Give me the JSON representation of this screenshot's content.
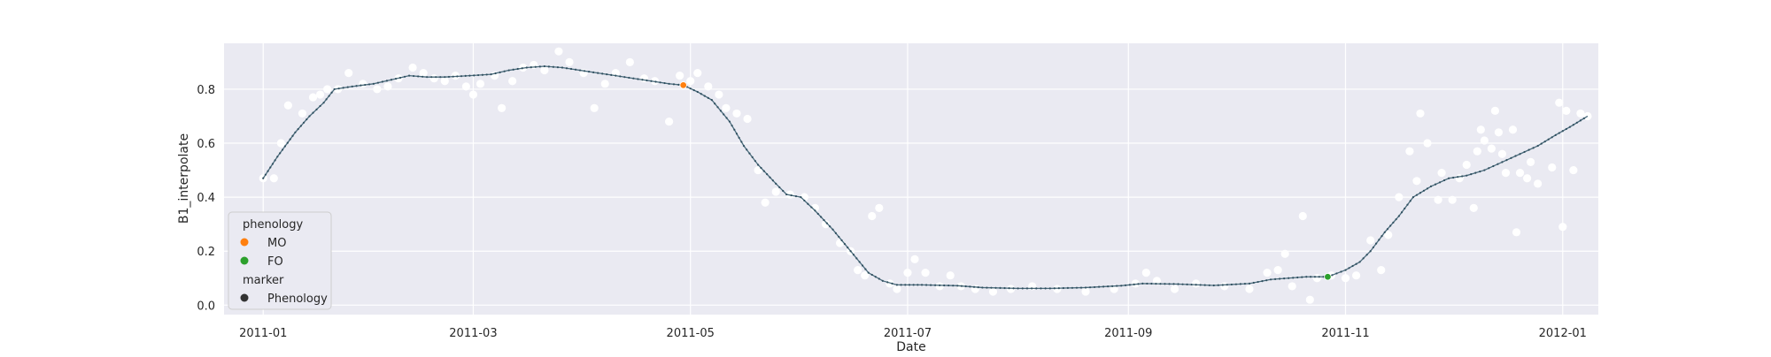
{
  "chart_data": {
    "type": "line",
    "xlabel": "Date",
    "ylabel": "B1_interpolate",
    "xlim": [
      "2010-12-21",
      "2012-01-11"
    ],
    "ylim": [
      -0.035,
      0.97
    ],
    "x_ticks": [
      "2011-01-01",
      "2011-03-01",
      "2011-05-01",
      "2011-07-01",
      "2011-09-01",
      "2011-11-01",
      "2012-01-01"
    ],
    "x_tick_labels": [
      "2011-01",
      "2011-03",
      "2011-05",
      "2011-07",
      "2011-09",
      "2011-11",
      "2012-01"
    ],
    "y_ticks": [
      0.0,
      0.2,
      0.4,
      0.6,
      0.8
    ],
    "y_tick_labels": [
      "0.0",
      "0.2",
      "0.4",
      "0.6",
      "0.8"
    ],
    "grid": true,
    "legend_position": "lower-left",
    "legend": {
      "title_hue": "phenology",
      "title_marker": "marker",
      "entries": [
        {
          "label": "MO",
          "color": "#ff7f0e"
        },
        {
          "label": "FO",
          "color": "#2ca02c"
        }
      ],
      "marker_entries": [
        {
          "label": "Phenology",
          "color": "#333333"
        }
      ]
    },
    "colors": {
      "line": "#4a6b7c",
      "raw_points": "#ffffff",
      "background": "#eaeaf2",
      "grid": "#ffffff"
    },
    "series": [
      {
        "name": "B1_interpolate",
        "kind": "line",
        "points": [
          [
            "2011-01-01",
            0.47
          ],
          [
            "2011-01-05",
            0.55
          ],
          [
            "2011-01-10",
            0.64
          ],
          [
            "2011-01-14",
            0.7
          ],
          [
            "2011-01-18",
            0.75
          ],
          [
            "2011-01-21",
            0.8
          ],
          [
            "2011-01-26",
            0.81
          ],
          [
            "2011-02-01",
            0.82
          ],
          [
            "2011-02-06",
            0.835
          ],
          [
            "2011-02-11",
            0.85
          ],
          [
            "2011-02-16",
            0.845
          ],
          [
            "2011-02-21",
            0.845
          ],
          [
            "2011-02-28",
            0.85
          ],
          [
            "2011-03-06",
            0.855
          ],
          [
            "2011-03-11",
            0.87
          ],
          [
            "2011-03-16",
            0.88
          ],
          [
            "2011-03-21",
            0.885
          ],
          [
            "2011-03-26",
            0.88
          ],
          [
            "2011-03-31",
            0.87
          ],
          [
            "2011-04-05",
            0.86
          ],
          [
            "2011-04-10",
            0.85
          ],
          [
            "2011-04-15",
            0.84
          ],
          [
            "2011-04-20",
            0.83
          ],
          [
            "2011-04-25",
            0.82
          ],
          [
            "2011-04-29",
            0.815
          ],
          [
            "2011-05-03",
            0.79
          ],
          [
            "2011-05-07",
            0.76
          ],
          [
            "2011-05-12",
            0.68
          ],
          [
            "2011-05-16",
            0.59
          ],
          [
            "2011-05-20",
            0.52
          ],
          [
            "2011-05-25",
            0.45
          ],
          [
            "2011-05-28",
            0.41
          ],
          [
            "2011-06-01",
            0.4
          ],
          [
            "2011-06-05",
            0.35
          ],
          [
            "2011-06-10",
            0.28
          ],
          [
            "2011-06-15",
            0.2
          ],
          [
            "2011-06-20",
            0.12
          ],
          [
            "2011-06-24",
            0.09
          ],
          [
            "2011-06-28",
            0.075
          ],
          [
            "2011-07-05",
            0.075
          ],
          [
            "2011-07-15",
            0.072
          ],
          [
            "2011-07-22",
            0.065
          ],
          [
            "2011-08-01",
            0.062
          ],
          [
            "2011-08-10",
            0.062
          ],
          [
            "2011-08-20",
            0.065
          ],
          [
            "2011-08-30",
            0.072
          ],
          [
            "2011-09-05",
            0.08
          ],
          [
            "2011-09-15",
            0.078
          ],
          [
            "2011-09-25",
            0.073
          ],
          [
            "2011-10-05",
            0.08
          ],
          [
            "2011-10-11",
            0.095
          ],
          [
            "2011-10-21",
            0.105
          ],
          [
            "2011-10-27",
            0.105
          ],
          [
            "2011-11-01",
            0.13
          ],
          [
            "2011-11-05",
            0.16
          ],
          [
            "2011-11-08",
            0.2
          ],
          [
            "2011-11-12",
            0.27
          ],
          [
            "2011-11-16",
            0.33
          ],
          [
            "2011-11-20",
            0.4
          ],
          [
            "2011-11-25",
            0.44
          ],
          [
            "2011-11-30",
            0.47
          ],
          [
            "2011-12-05",
            0.48
          ],
          [
            "2011-12-10",
            0.5
          ],
          [
            "2011-12-15",
            0.53
          ],
          [
            "2011-12-20",
            0.56
          ],
          [
            "2011-12-25",
            0.59
          ],
          [
            "2011-12-30",
            0.63
          ],
          [
            "2012-01-03",
            0.66
          ],
          [
            "2012-01-08",
            0.7
          ]
        ]
      },
      {
        "name": "raw",
        "kind": "scatter",
        "points": [
          [
            "2011-01-01",
            0.47
          ],
          [
            "2011-01-04",
            0.47
          ],
          [
            "2011-01-06",
            0.6
          ],
          [
            "2011-01-08",
            0.74
          ],
          [
            "2011-01-12",
            0.71
          ],
          [
            "2011-01-15",
            0.77
          ],
          [
            "2011-01-17",
            0.78
          ],
          [
            "2011-01-19",
            0.8
          ],
          [
            "2011-01-22",
            0.8
          ],
          [
            "2011-01-25",
            0.86
          ],
          [
            "2011-01-29",
            0.82
          ],
          [
            "2011-02-02",
            0.8
          ],
          [
            "2011-02-05",
            0.81
          ],
          [
            "2011-02-08",
            0.84
          ],
          [
            "2011-02-12",
            0.88
          ],
          [
            "2011-02-15",
            0.86
          ],
          [
            "2011-02-18",
            0.84
          ],
          [
            "2011-02-21",
            0.83
          ],
          [
            "2011-02-24",
            0.85
          ],
          [
            "2011-02-27",
            0.81
          ],
          [
            "2011-03-01",
            0.78
          ],
          [
            "2011-03-03",
            0.82
          ],
          [
            "2011-03-07",
            0.85
          ],
          [
            "2011-03-09",
            0.73
          ],
          [
            "2011-03-12",
            0.83
          ],
          [
            "2011-03-15",
            0.88
          ],
          [
            "2011-03-18",
            0.89
          ],
          [
            "2011-03-21",
            0.87
          ],
          [
            "2011-03-25",
            0.94
          ],
          [
            "2011-03-28",
            0.9
          ],
          [
            "2011-04-01",
            0.86
          ],
          [
            "2011-04-04",
            0.73
          ],
          [
            "2011-04-07",
            0.82
          ],
          [
            "2011-04-10",
            0.86
          ],
          [
            "2011-04-14",
            0.9
          ],
          [
            "2011-04-18",
            0.84
          ],
          [
            "2011-04-21",
            0.83
          ],
          [
            "2011-04-25",
            0.68
          ],
          [
            "2011-04-28",
            0.85
          ],
          [
            "2011-05-01",
            0.83
          ],
          [
            "2011-05-03",
            0.86
          ],
          [
            "2011-05-06",
            0.81
          ],
          [
            "2011-05-09",
            0.78
          ],
          [
            "2011-05-11",
            0.73
          ],
          [
            "2011-05-14",
            0.71
          ],
          [
            "2011-05-17",
            0.69
          ],
          [
            "2011-05-20",
            0.5
          ],
          [
            "2011-05-22",
            0.38
          ],
          [
            "2011-05-25",
            0.42
          ],
          [
            "2011-05-29",
            0.41
          ],
          [
            "2011-06-02",
            0.4
          ],
          [
            "2011-06-05",
            0.36
          ],
          [
            "2011-06-08",
            0.3
          ],
          [
            "2011-06-12",
            0.23
          ],
          [
            "2011-06-15",
            0.2
          ],
          [
            "2011-06-17",
            0.13
          ],
          [
            "2011-06-19",
            0.11
          ],
          [
            "2011-06-21",
            0.33
          ],
          [
            "2011-06-23",
            0.36
          ],
          [
            "2011-06-26",
            0.08
          ],
          [
            "2011-06-28",
            0.06
          ],
          [
            "2011-07-01",
            0.12
          ],
          [
            "2011-07-03",
            0.17
          ],
          [
            "2011-07-06",
            0.12
          ],
          [
            "2011-07-10",
            0.07
          ],
          [
            "2011-07-13",
            0.11
          ],
          [
            "2011-07-16",
            0.07
          ],
          [
            "2011-07-20",
            0.06
          ],
          [
            "2011-07-25",
            0.05
          ],
          [
            "2011-07-30",
            0.06
          ],
          [
            "2011-08-05",
            0.07
          ],
          [
            "2011-08-12",
            0.06
          ],
          [
            "2011-08-20",
            0.05
          ],
          [
            "2011-08-28",
            0.06
          ],
          [
            "2011-09-03",
            0.08
          ],
          [
            "2011-09-06",
            0.12
          ],
          [
            "2011-09-09",
            0.09
          ],
          [
            "2011-09-14",
            0.06
          ],
          [
            "2011-09-20",
            0.08
          ],
          [
            "2011-09-28",
            0.07
          ],
          [
            "2011-10-05",
            0.06
          ],
          [
            "2011-10-10",
            0.12
          ],
          [
            "2011-10-13",
            0.13
          ],
          [
            "2011-10-15",
            0.19
          ],
          [
            "2011-10-17",
            0.07
          ],
          [
            "2011-10-20",
            0.33
          ],
          [
            "2011-10-22",
            0.02
          ],
          [
            "2011-10-24",
            0.1
          ],
          [
            "2011-10-28",
            0.11
          ],
          [
            "2011-11-01",
            0.1
          ],
          [
            "2011-11-04",
            0.11
          ],
          [
            "2011-11-08",
            0.24
          ],
          [
            "2011-11-11",
            0.13
          ],
          [
            "2011-11-13",
            0.26
          ],
          [
            "2011-11-16",
            0.4
          ],
          [
            "2011-11-19",
            0.57
          ],
          [
            "2011-11-21",
            0.46
          ],
          [
            "2011-11-22",
            0.71
          ],
          [
            "2011-11-24",
            0.6
          ],
          [
            "2011-11-27",
            0.39
          ],
          [
            "2011-11-28",
            0.49
          ],
          [
            "2011-12-01",
            0.39
          ],
          [
            "2011-12-03",
            0.47
          ],
          [
            "2011-12-05",
            0.52
          ],
          [
            "2011-12-07",
            0.36
          ],
          [
            "2011-12-08",
            0.57
          ],
          [
            "2011-12-09",
            0.65
          ],
          [
            "2011-12-10",
            0.61
          ],
          [
            "2011-12-12",
            0.58
          ],
          [
            "2011-12-13",
            0.72
          ],
          [
            "2011-12-14",
            0.64
          ],
          [
            "2011-12-15",
            0.56
          ],
          [
            "2011-12-16",
            0.49
          ],
          [
            "2011-12-18",
            0.65
          ],
          [
            "2011-12-19",
            0.27
          ],
          [
            "2011-12-20",
            0.49
          ],
          [
            "2011-12-22",
            0.47
          ],
          [
            "2011-12-23",
            0.53
          ],
          [
            "2011-12-25",
            0.45
          ],
          [
            "2011-12-29",
            0.51
          ],
          [
            "2011-12-31",
            0.75
          ],
          [
            "2012-01-01",
            0.29
          ],
          [
            "2012-01-02",
            0.72
          ],
          [
            "2012-01-04",
            0.5
          ],
          [
            "2012-01-06",
            0.71
          ],
          [
            "2012-01-08",
            0.7
          ]
        ]
      },
      {
        "name": "MO",
        "kind": "marker",
        "points": [
          [
            "2011-04-29",
            0.815
          ]
        ]
      },
      {
        "name": "FO",
        "kind": "marker",
        "points": [
          [
            "2011-10-27",
            0.105
          ]
        ]
      }
    ]
  }
}
